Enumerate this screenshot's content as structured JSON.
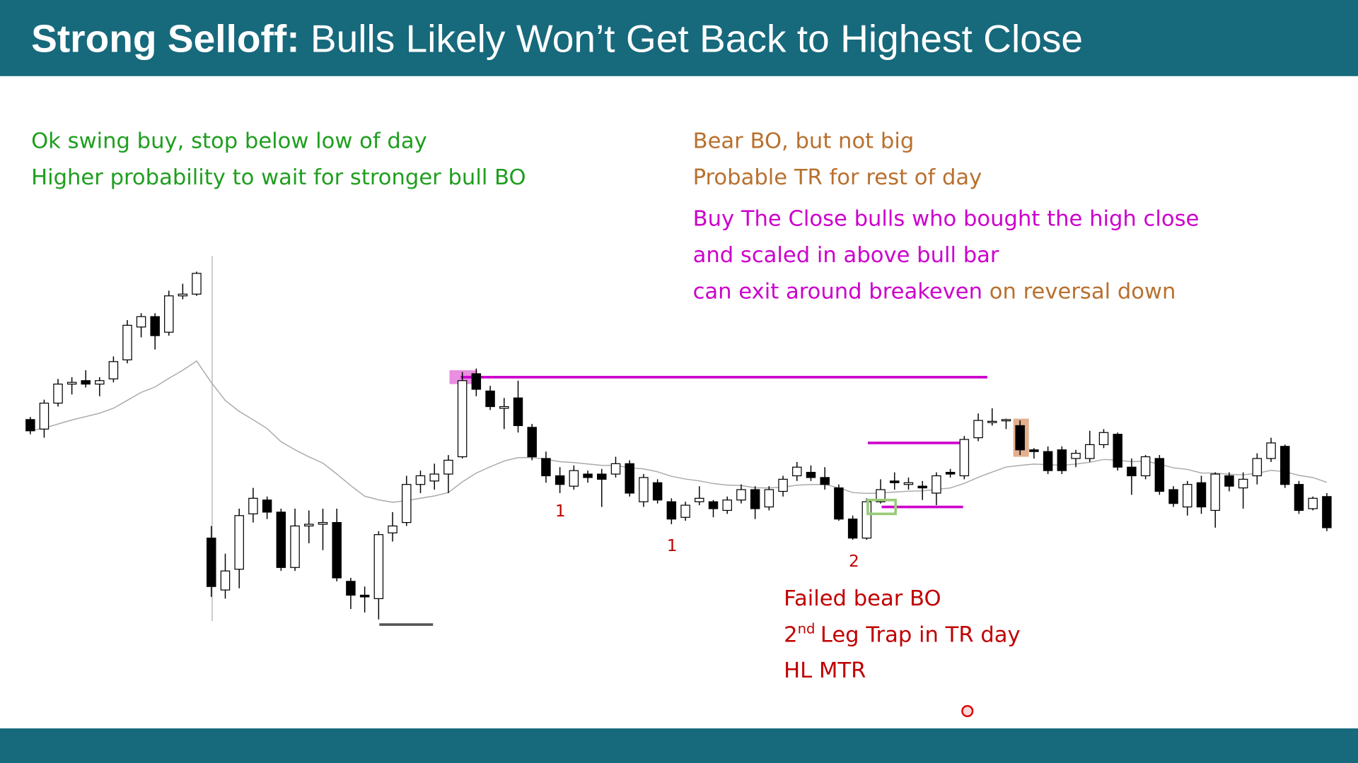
{
  "header": {
    "title_bold": "Strong Selloff:",
    "title_rest": "Bulls Likely Won’t Get Back to Highest Close"
  },
  "notes": {
    "green": [
      "Ok swing buy, stop below low of day",
      "Higher probability to wait for stronger bull BO"
    ],
    "brown": [
      "Bear BO, but not big",
      "Probable TR for rest of day"
    ],
    "magenta": [
      "Buy The Close bulls who bought the high close",
      "and scaled in above bull bar",
      "can exit around breakeven"
    ],
    "magenta_tail": "on reversal down",
    "red_1": "Failed bear BO",
    "red_2": {
      "lead": "2",
      "sup": "nd",
      "rest": "Leg Trap in TR day"
    },
    "red_3": "HL MTR",
    "leg_labels": [
      "1",
      "1",
      "2"
    ]
  },
  "chart_data": {
    "type": "candlestick",
    "ylim": [
      150,
      590
    ],
    "sessions": [
      {
        "candles": [
          [
            395,
            398,
            378,
            382
          ],
          [
            384,
            418,
            374,
            414
          ],
          [
            414,
            442,
            410,
            436
          ],
          [
            436,
            444,
            424,
            438
          ],
          [
            440,
            452,
            432,
            436
          ],
          [
            436,
            444,
            422,
            440
          ],
          [
            442,
            468,
            438,
            462
          ],
          [
            464,
            510,
            460,
            504
          ],
          [
            502,
            518,
            490,
            514
          ],
          [
            514,
            518,
            476,
            492
          ],
          [
            496,
            544,
            492,
            538
          ],
          [
            538,
            552,
            534,
            540
          ],
          [
            540,
            566,
            538,
            564
          ]
        ]
      },
      {
        "candles": [
          [
            258,
            272,
            190,
            202
          ],
          [
            198,
            240,
            188,
            220
          ],
          [
            222,
            292,
            200,
            284
          ],
          [
            286,
            316,
            276,
            304
          ],
          [
            302,
            306,
            280,
            288
          ],
          [
            288,
            292,
            220,
            224
          ],
          [
            224,
            292,
            220,
            272
          ],
          [
            272,
            290,
            252,
            274
          ],
          [
            274,
            292,
            244,
            276
          ],
          [
            276,
            292,
            208,
            212
          ],
          [
            208,
            212,
            176,
            192
          ],
          [
            192,
            202,
            172,
            190
          ],
          [
            188,
            266,
            164,
            262
          ],
          [
            264,
            288,
            254,
            272
          ],
          [
            276,
            330,
            272,
            320
          ],
          [
            320,
            336,
            310,
            330
          ],
          [
            324,
            344,
            314,
            332
          ],
          [
            332,
            354,
            310,
            348
          ],
          [
            352,
            450,
            350,
            440
          ],
          [
            448,
            454,
            422,
            430
          ],
          [
            428,
            434,
            406,
            410
          ],
          [
            408,
            420,
            384,
            410
          ],
          [
            420,
            440,
            380,
            388
          ],
          [
            386,
            390,
            348,
            352
          ],
          [
            350,
            358,
            322,
            330
          ],
          [
            330,
            340,
            310,
            320
          ],
          [
            318,
            342,
            314,
            336
          ],
          [
            332,
            336,
            322,
            328
          ],
          [
            332,
            338,
            294,
            326
          ],
          [
            332,
            352,
            328,
            344
          ],
          [
            344,
            348,
            306,
            310
          ],
          [
            300,
            332,
            294,
            328
          ],
          [
            322,
            326,
            298,
            302
          ],
          [
            300,
            304,
            274,
            280
          ],
          [
            282,
            300,
            278,
            296
          ],
          [
            300,
            318,
            296,
            304
          ],
          [
            300,
            302,
            282,
            292
          ],
          [
            290,
            306,
            286,
            302
          ],
          [
            302,
            320,
            298,
            314
          ],
          [
            314,
            318,
            280,
            292
          ],
          [
            294,
            318,
            290,
            314
          ],
          [
            312,
            330,
            306,
            326
          ],
          [
            330,
            346,
            324,
            340
          ],
          [
            334,
            342,
            324,
            328
          ],
          [
            328,
            340,
            314,
            320
          ],
          [
            316,
            320,
            278,
            280
          ],
          [
            280,
            284,
            256,
            258
          ],
          [
            258,
            304,
            256,
            300
          ],
          [
            300,
            326,
            298,
            314
          ],
          [
            324,
            334,
            314,
            322
          ],
          [
            320,
            328,
            314,
            322
          ],
          [
            318,
            324,
            302,
            316
          ],
          [
            310,
            334,
            296,
            330
          ],
          [
            334,
            338,
            328,
            332
          ],
          [
            330,
            376,
            326,
            372
          ],
          [
            374,
            402,
            370,
            394
          ],
          [
            392,
            408,
            388,
            393
          ],
          [
            394,
            396,
            384,
            395
          ],
          [
            388,
            394,
            354,
            360
          ],
          [
            360,
            362,
            350,
            358
          ],
          [
            358,
            364,
            332,
            336
          ],
          [
            360,
            364,
            332,
            336
          ],
          [
            350,
            360,
            340,
            356
          ],
          [
            350,
            382,
            346,
            366
          ],
          [
            366,
            384,
            362,
            380
          ],
          [
            378,
            380,
            336,
            340
          ],
          [
            340,
            350,
            308,
            330
          ],
          [
            330,
            354,
            326,
            352
          ],
          [
            350,
            354,
            308,
            312
          ],
          [
            314,
            318,
            294,
            298
          ],
          [
            294,
            324,
            284,
            320
          ],
          [
            322,
            330,
            286,
            294
          ],
          [
            290,
            334,
            270,
            332
          ],
          [
            330,
            334,
            312,
            318
          ],
          [
            316,
            334,
            292,
            326
          ],
          [
            330,
            356,
            320,
            350
          ],
          [
            350,
            374,
            346,
            368
          ],
          [
            364,
            366,
            316,
            320
          ],
          [
            320,
            324,
            286,
            290
          ],
          [
            292,
            306,
            290,
            304
          ],
          [
            306,
            310,
            266,
            270
          ]
        ]
      }
    ]
  }
}
